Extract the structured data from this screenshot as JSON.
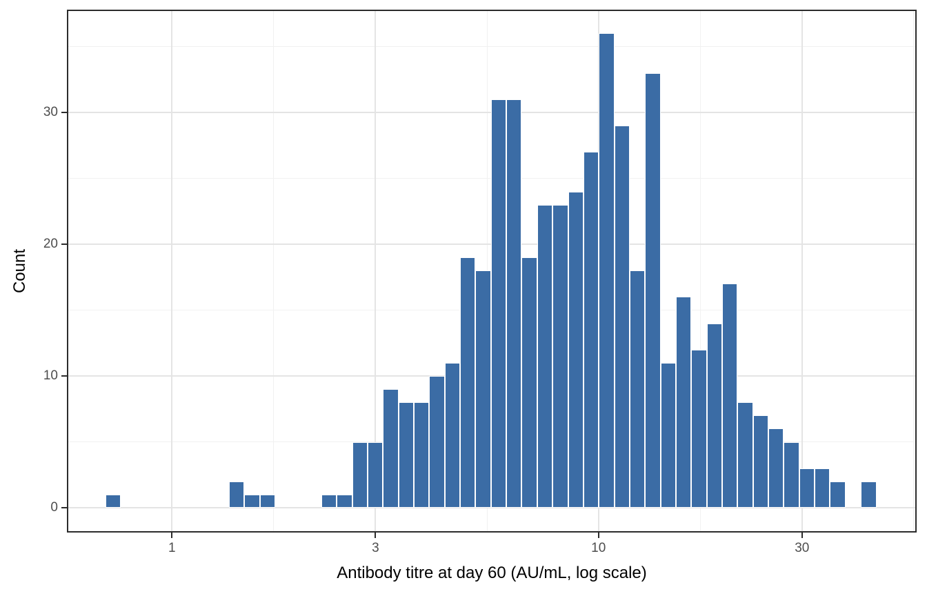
{
  "figure": {
    "background": "#FFFFFF"
  },
  "axes": {
    "x_title": "Antibody titre at day 60 (AU/mL, log scale)",
    "y_title": "Count"
  },
  "chart_data": {
    "type": "bar",
    "subtype": "histogram",
    "title": "",
    "xlabel": "Antibody titre at day 60 (AU/mL, log scale)",
    "ylabel": "Count",
    "x_scale": "log10",
    "grid": "on",
    "legend": "none",
    "n_total": 500,
    "n_bins": 50,
    "bin_width_log10": 0.0361416,
    "first_bin_left_log10": -0.15571,
    "xlim_log10": [
      -0.2447,
      1.7443
    ],
    "ylim": [
      -1.83,
      37.75
    ],
    "x_tick_values": [
      1,
      3,
      10,
      30
    ],
    "x_tick_labels": [
      "1",
      "3",
      "10",
      "30"
    ],
    "x_minor_values": [
      1.732,
      5.477,
      17.32,
      54.77
    ],
    "y_tick_values": [
      0,
      10,
      20,
      30
    ],
    "y_tick_labels": [
      "0",
      "10",
      "20",
      "30"
    ],
    "y_minor_values": [
      5,
      15,
      25,
      35
    ],
    "bin_centers": [
      0.728,
      0.791,
      0.859,
      0.934,
      1.015,
      1.102,
      1.198,
      1.301,
      1.414,
      1.536,
      1.669,
      1.814,
      1.971,
      2.141,
      2.327,
      2.528,
      2.747,
      2.985,
      3.243,
      3.524,
      3.829,
      4.161,
      4.521,
      4.912,
      5.338,
      5.8,
      6.302,
      6.847,
      7.44,
      8.084,
      8.784,
      9.545,
      10.37,
      11.27,
      12.24,
      13.3,
      14.45,
      15.71,
      17.07,
      18.54,
      20.15,
      21.89,
      23.79,
      25.85,
      28.09,
      30.52,
      33.16,
      36.03,
      39.15,
      42.54
    ],
    "counts": [
      1,
      0,
      0,
      0,
      0,
      0,
      0,
      0,
      2,
      1,
      1,
      0,
      0,
      0,
      1,
      1,
      5,
      5,
      9,
      8,
      8,
      10,
      11,
      19,
      18,
      31,
      31,
      19,
      23,
      23,
      24,
      27,
      36,
      29,
      18,
      33,
      11,
      16,
      12,
      14,
      17,
      8,
      7,
      6,
      5,
      3,
      3,
      2,
      0,
      2
    ],
    "colors": {
      "bar_fill": "#3B6CA5",
      "bar_stroke": "#FFFFFF",
      "grid_major": "#E4E4E4",
      "grid_minor": "#F1F1F1",
      "panel_border": "#2B2B2B",
      "tick_color": "#2B2B2B",
      "tick_label_color": "#4D4D4D",
      "title_color": "#000000"
    }
  }
}
